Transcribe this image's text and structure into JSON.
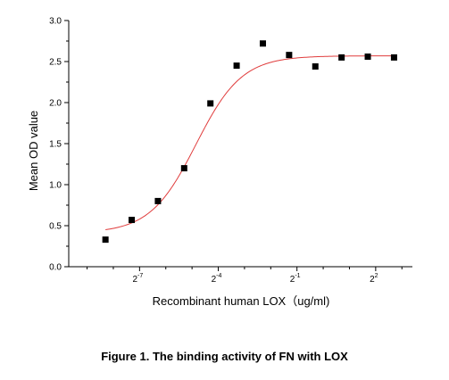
{
  "chart_data": {
    "type": "scatter",
    "xlabel": "Recombinant human LOX（ug/ml)",
    "ylabel": "Mean OD value",
    "x_scale": "log2",
    "xlim_log2": [
      -9.7,
      3.4
    ],
    "ylim": [
      0,
      3.0
    ],
    "y_ticks": [
      "0.0",
      "0.5",
      "1.0",
      "1.5",
      "2.0",
      "2.5",
      "3.0"
    ],
    "x_tick_labels": [
      {
        "base": "2",
        "exp": "-7"
      },
      {
        "base": "2",
        "exp": "-4"
      },
      {
        "base": "2",
        "exp": "-1"
      },
      {
        "base": "2",
        "exp": "2"
      }
    ],
    "points_log2x": [
      -8.3,
      -7.3,
      -6.3,
      -5.3,
      -4.3,
      -3.3,
      -2.3,
      -1.3,
      -0.3,
      0.7,
      1.7,
      2.7
    ],
    "points_y": [
      0.33,
      0.57,
      0.8,
      1.2,
      1.99,
      2.45,
      2.72,
      2.58,
      2.44,
      2.55,
      2.56,
      2.55
    ],
    "fit_curve": {
      "type": "4PL",
      "bottom": 0.41,
      "top": 2.57,
      "ec50_log2": -4.85,
      "hill": 1.65,
      "color": "#e03c3c"
    },
    "marker_color": "#000000"
  },
  "caption": "Figure 1. The binding activity of FN with LOX"
}
